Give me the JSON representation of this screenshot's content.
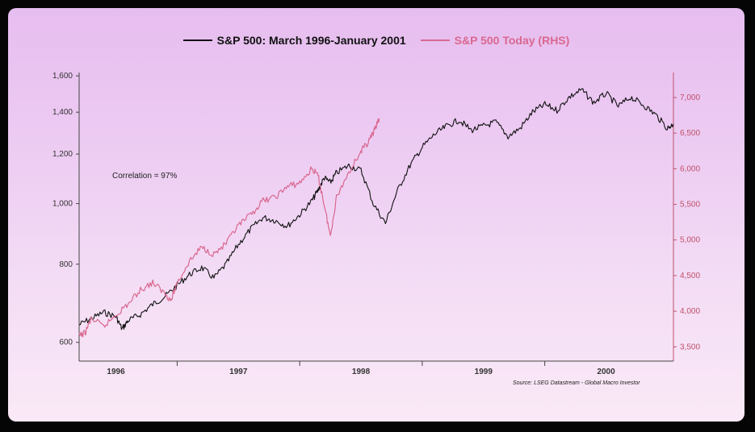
{
  "chart_data": {
    "type": "line",
    "title": "",
    "legend": [
      {
        "label": "S&P 500: March 1996-January 2001",
        "color": "#111111"
      },
      {
        "label": "S&P 500 Today (RHS)",
        "color": "#d9688f"
      }
    ],
    "legend_position": "top-center",
    "annotation": "Correlation = 97%",
    "source": "Source: LSEG Datastream - Global Macro Investor",
    "y_left": {
      "scale": "log",
      "range": [
        560,
        1620
      ],
      "ticks": [
        600,
        800,
        1000,
        1200,
        1400,
        1600
      ],
      "tick_labels": [
        "600",
        "800",
        "1,000",
        "1,200",
        "1,400",
        "1,600"
      ],
      "color": "#333333"
    },
    "y_right": {
      "scale": "linear",
      "range": [
        3300,
        7350
      ],
      "ticks": [
        3500,
        4000,
        4500,
        5000,
        5500,
        6000,
        6500,
        7000
      ],
      "tick_labels": [
        "3,500",
        "4,000",
        "4,500",
        "5,000",
        "5,500",
        "6,000",
        "6,500",
        "7,000"
      ],
      "color": "#c0506a"
    },
    "x_axis": {
      "range": [
        1996.2,
        2001.05
      ],
      "ticks": [
        1996,
        1997,
        1998,
        1999,
        2000
      ],
      "tick_labels": [
        "1996",
        "1997",
        "1998",
        "1999",
        "2000"
      ]
    },
    "grid": "horizontal",
    "series": [
      {
        "name": "S&P 500: March 1996-January 2001",
        "axis": "left",
        "x": [
          1996.2,
          1996.3,
          1996.4,
          1996.5,
          1996.55,
          1996.6,
          1996.7,
          1996.8,
          1996.9,
          1997.0,
          1997.1,
          1997.2,
          1997.3,
          1997.4,
          1997.5,
          1997.6,
          1997.7,
          1997.8,
          1997.9,
          1998.0,
          1998.1,
          1998.15,
          1998.2,
          1998.25,
          1998.3,
          1998.4,
          1998.5,
          1998.6,
          1998.7,
          1998.8,
          1998.9,
          1999.0,
          1999.1,
          1999.2,
          1999.3,
          1999.4,
          1999.5,
          1999.6,
          1999.7,
          1999.8,
          1999.9,
          2000.0,
          2000.1,
          2000.2,
          2000.3,
          2000.4,
          2000.5,
          2000.6,
          2000.7,
          2000.8,
          2000.9,
          2001.0,
          2001.05
        ],
        "y": [
          640,
          655,
          670,
          660,
          630,
          650,
          665,
          690,
          710,
          740,
          770,
          790,
          760,
          800,
          860,
          910,
          950,
          940,
          920,
          960,
          1010,
          1050,
          1100,
          1080,
          1120,
          1150,
          1130,
          1000,
          930,
          1050,
          1150,
          1230,
          1290,
          1330,
          1360,
          1310,
          1330,
          1350,
          1280,
          1320,
          1400,
          1440,
          1410,
          1480,
          1520,
          1450,
          1500,
          1430,
          1480,
          1440,
          1390,
          1320,
          1340
        ]
      },
      {
        "name": "S&P 500 Today (RHS)",
        "axis": "right",
        "x": [
          1996.2,
          1996.25,
          1996.3,
          1996.4,
          1996.5,
          1996.6,
          1996.7,
          1996.8,
          1996.9,
          1996.95,
          1997.0,
          1997.1,
          1997.2,
          1997.3,
          1997.4,
          1997.5,
          1997.6,
          1997.7,
          1997.8,
          1997.9,
          1998.0,
          1998.1,
          1998.15,
          1998.2,
          1998.25,
          1998.3,
          1998.4,
          1998.5,
          1998.55,
          1998.6,
          1998.65
        ],
        "y": [
          3650,
          3700,
          3900,
          3780,
          3950,
          4100,
          4300,
          4400,
          4250,
          4150,
          4400,
          4700,
          4900,
          4800,
          4950,
          5200,
          5350,
          5550,
          5600,
          5750,
          5800,
          6000,
          5900,
          5500,
          5050,
          5600,
          5950,
          6250,
          6350,
          6500,
          6700
        ]
      }
    ]
  }
}
